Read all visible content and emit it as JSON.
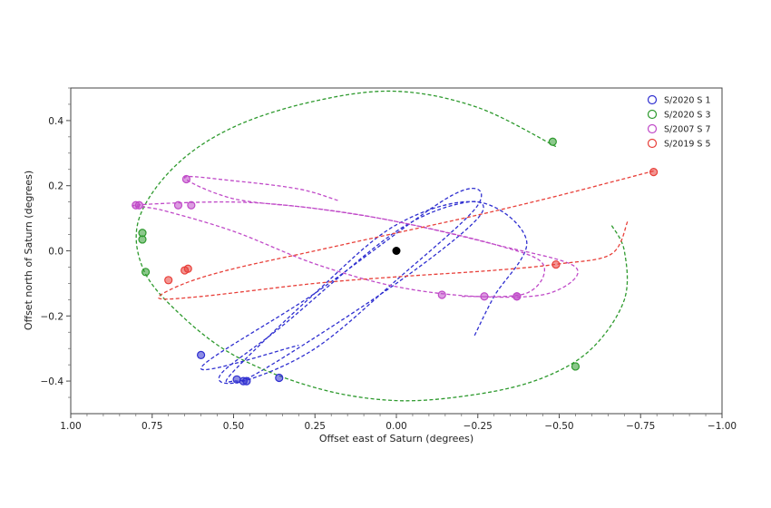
{
  "chart_data": {
    "type": "scatter",
    "xlabel": "Offset east of Saturn (degrees)",
    "ylabel": "Offset north of Saturn (degrees)",
    "xlim": [
      1.0,
      -1.0
    ],
    "ylim": [
      -0.5,
      0.5
    ],
    "x_ticks": [
      1.0,
      0.75,
      0.5,
      0.25,
      0.0,
      -0.25,
      -0.5,
      -0.75,
      -1.0
    ],
    "x_tick_labels": [
      "1.00",
      "0.75",
      "0.50",
      "0.25",
      "0.00",
      "−0.25",
      "−0.50",
      "−0.75",
      "−1.00"
    ],
    "y_ticks": [
      0.4,
      0.2,
      0.0,
      -0.2,
      -0.4
    ],
    "y_tick_labels": [
      "0.4",
      "0.2",
      "0.0",
      "−0.2",
      "−0.4"
    ],
    "grid": false,
    "legend_position": "top-right",
    "saturn": {
      "x": 0.0,
      "y": 0.0,
      "color": "#000000"
    },
    "series": [
      {
        "name": "S/2020 S 1",
        "color": "#2f2fd0",
        "orbit": [
          [
            -0.24,
            -0.26
          ],
          [
            -0.3,
            -0.14
          ],
          [
            -0.4,
            0.03
          ],
          [
            -0.25,
            0.15
          ],
          [
            0,
            0.08
          ],
          [
            0.25,
            -0.13
          ],
          [
            0.5,
            -0.37
          ],
          [
            0.5,
            -0.4
          ],
          [
            0.4,
            -0.36
          ],
          [
            0,
            -0.1
          ],
          [
            -0.25,
            0.1
          ],
          [
            -0.22,
            0.15
          ],
          [
            0,
            0.06
          ],
          [
            0.35,
            -0.23
          ],
          [
            0.54,
            -0.38
          ],
          [
            0.47,
            -0.4
          ],
          [
            0.25,
            -0.3
          ],
          [
            0,
            -0.09
          ],
          [
            -0.25,
            0.14
          ],
          [
            -0.17,
            0.17
          ],
          [
            0.25,
            -0.13
          ],
          [
            0.6,
            -0.36
          ],
          [
            0.3,
            -0.29
          ]
        ],
        "points": [
          [
            0.6,
            -0.32
          ],
          [
            0.49,
            -0.395
          ],
          [
            0.47,
            -0.4
          ],
          [
            0.46,
            -0.4
          ],
          [
            0.36,
            -0.39
          ]
        ]
      },
      {
        "name": "S/2020 S 3",
        "color": "#2e9a2e",
        "orbit": [
          [
            -0.49,
            0.32
          ],
          [
            -0.25,
            0.44
          ],
          [
            0,
            0.49
          ],
          [
            0.25,
            0.46
          ],
          [
            0.5,
            0.38
          ],
          [
            0.68,
            0.26
          ],
          [
            0.79,
            0.1
          ],
          [
            0.78,
            -0.05
          ],
          [
            0.68,
            -0.18
          ],
          [
            0.5,
            -0.32
          ],
          [
            0.25,
            -0.42
          ],
          [
            0,
            -0.46
          ],
          [
            -0.25,
            -0.44
          ],
          [
            -0.45,
            -0.39
          ],
          [
            -0.6,
            -0.3
          ],
          [
            -0.7,
            -0.15
          ],
          [
            -0.7,
            0.0
          ],
          [
            -0.66,
            0.08
          ]
        ],
        "points": [
          [
            -0.48,
            0.335
          ],
          [
            0.78,
            0.055
          ],
          [
            0.78,
            0.035
          ],
          [
            0.77,
            -0.065
          ],
          [
            -0.55,
            -0.355
          ]
        ]
      },
      {
        "name": "S/2007 S 7",
        "color": "#c04ac8",
        "orbit": [
          [
            0.18,
            0.155
          ],
          [
            0.3,
            0.19
          ],
          [
            0.5,
            0.215
          ],
          [
            0.65,
            0.225
          ],
          [
            0.5,
            0.16
          ],
          [
            0.25,
            0.13
          ],
          [
            0,
            0.09
          ],
          [
            -0.3,
            0.02
          ],
          [
            -0.55,
            -0.05
          ],
          [
            -0.47,
            -0.13
          ],
          [
            -0.25,
            -0.14
          ],
          [
            0,
            -0.11
          ],
          [
            0.25,
            -0.04
          ],
          [
            0.5,
            0.06
          ],
          [
            0.72,
            0.125
          ],
          [
            0.8,
            0.14
          ],
          [
            0.5,
            0.15
          ],
          [
            0.25,
            0.13
          ],
          [
            0,
            0.09
          ],
          [
            -0.3,
            0.02
          ],
          [
            -0.45,
            -0.04
          ],
          [
            -0.4,
            -0.13
          ],
          [
            -0.2,
            -0.14
          ]
        ],
        "points": [
          [
            0.645,
            0.22
          ],
          [
            0.8,
            0.14
          ],
          [
            0.79,
            0.14
          ],
          [
            0.67,
            0.14
          ],
          [
            0.63,
            0.14
          ],
          [
            -0.14,
            -0.135
          ],
          [
            -0.27,
            -0.14
          ],
          [
            -0.37,
            -0.14
          ],
          [
            -0.37,
            -0.14
          ]
        ]
      },
      {
        "name": "S/2019 S 5",
        "color": "#e8403a",
        "orbit": [
          [
            -0.79,
            0.245
          ],
          [
            -0.5,
            0.17
          ],
          [
            -0.25,
            0.11
          ],
          [
            0,
            0.055
          ],
          [
            0.25,
            0.0
          ],
          [
            0.5,
            -0.055
          ],
          [
            0.65,
            -0.1
          ],
          [
            0.73,
            -0.145
          ],
          [
            0.6,
            -0.14
          ],
          [
            0.25,
            -0.1
          ],
          [
            0,
            -0.08
          ],
          [
            -0.3,
            -0.06
          ],
          [
            -0.5,
            -0.04
          ],
          [
            -0.66,
            -0.01
          ],
          [
            -0.71,
            0.09
          ]
        ],
        "points": [
          [
            -0.79,
            0.242
          ],
          [
            -0.49,
            -0.042
          ],
          [
            0.64,
            -0.055
          ],
          [
            0.65,
            -0.06
          ],
          [
            0.7,
            -0.09
          ]
        ]
      }
    ]
  }
}
